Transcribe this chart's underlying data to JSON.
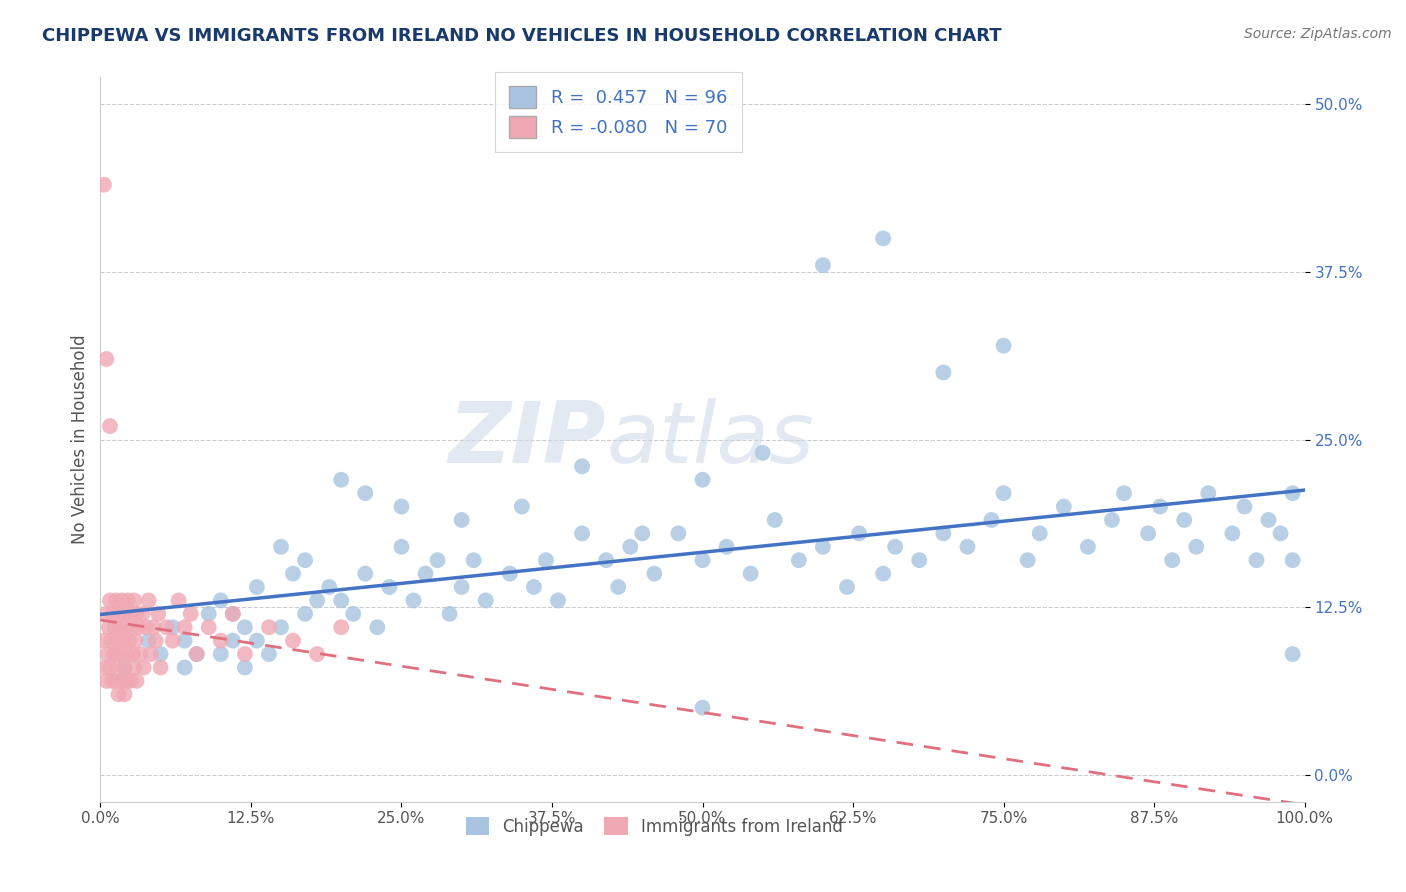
{
  "title": "CHIPPEWA VS IMMIGRANTS FROM IRELAND NO VEHICLES IN HOUSEHOLD CORRELATION CHART",
  "source_text": "Source: ZipAtlas.com",
  "ylabel": "No Vehicles in Household",
  "xlim": [
    0.0,
    1.0
  ],
  "ylim": [
    -0.02,
    0.52
  ],
  "xtick_labels": [
    "0.0%",
    "12.5%",
    "25.0%",
    "37.5%",
    "50.0%",
    "62.5%",
    "75.0%",
    "87.5%",
    "100.0%"
  ],
  "xtick_positions": [
    0.0,
    0.125,
    0.25,
    0.375,
    0.5,
    0.625,
    0.75,
    0.875,
    1.0
  ],
  "ytick_labels": [
    "0.0%",
    "12.5%",
    "25.0%",
    "37.5%",
    "50.0%"
  ],
  "ytick_positions": [
    0.0,
    0.125,
    0.25,
    0.375,
    0.5
  ],
  "legend_labels": [
    "Chippewa",
    "Immigrants from Ireland"
  ],
  "r_blue": 0.457,
  "n_blue": 96,
  "r_pink": -0.08,
  "n_pink": 70,
  "blue_color": "#a8c4e0",
  "pink_color": "#f0a8b4",
  "blue_line_color": "#4472c4",
  "pink_line_color": "#e07080",
  "watermark_zip": "ZIP",
  "watermark_atlas": "atlas",
  "background_color": "#ffffff",
  "grid_color": "#cccccc",
  "title_color": "#1a3a6b",
  "blue_scatter_x": [
    0.02,
    0.04,
    0.05,
    0.06,
    0.07,
    0.07,
    0.08,
    0.09,
    0.1,
    0.1,
    0.11,
    0.11,
    0.12,
    0.12,
    0.13,
    0.13,
    0.14,
    0.15,
    0.16,
    0.17,
    0.18,
    0.19,
    0.2,
    0.21,
    0.22,
    0.23,
    0.24,
    0.25,
    0.26,
    0.27,
    0.28,
    0.29,
    0.3,
    0.31,
    0.32,
    0.34,
    0.36,
    0.37,
    0.38,
    0.4,
    0.42,
    0.43,
    0.44,
    0.46,
    0.48,
    0.5,
    0.5,
    0.52,
    0.54,
    0.56,
    0.58,
    0.6,
    0.62,
    0.63,
    0.65,
    0.66,
    0.68,
    0.7,
    0.72,
    0.74,
    0.75,
    0.77,
    0.78,
    0.8,
    0.82,
    0.84,
    0.85,
    0.87,
    0.88,
    0.89,
    0.9,
    0.91,
    0.92,
    0.94,
    0.95,
    0.96,
    0.97,
    0.98,
    0.99,
    0.99,
    0.99,
    0.6,
    0.65,
    0.7,
    0.75,
    0.5,
    0.55,
    0.35,
    0.4,
    0.45,
    0.2,
    0.25,
    0.3,
    0.15,
    0.17,
    0.22
  ],
  "blue_scatter_y": [
    0.08,
    0.1,
    0.09,
    0.11,
    0.08,
    0.1,
    0.09,
    0.12,
    0.09,
    0.13,
    0.1,
    0.12,
    0.08,
    0.11,
    0.1,
    0.14,
    0.09,
    0.11,
    0.15,
    0.12,
    0.13,
    0.14,
    0.13,
    0.12,
    0.15,
    0.11,
    0.14,
    0.17,
    0.13,
    0.15,
    0.16,
    0.12,
    0.14,
    0.16,
    0.13,
    0.15,
    0.14,
    0.16,
    0.13,
    0.18,
    0.16,
    0.14,
    0.17,
    0.15,
    0.18,
    0.05,
    0.16,
    0.17,
    0.15,
    0.19,
    0.16,
    0.17,
    0.14,
    0.18,
    0.15,
    0.17,
    0.16,
    0.18,
    0.17,
    0.19,
    0.21,
    0.16,
    0.18,
    0.2,
    0.17,
    0.19,
    0.21,
    0.18,
    0.2,
    0.16,
    0.19,
    0.17,
    0.21,
    0.18,
    0.2,
    0.16,
    0.19,
    0.18,
    0.21,
    0.16,
    0.09,
    0.38,
    0.4,
    0.3,
    0.32,
    0.22,
    0.24,
    0.2,
    0.23,
    0.18,
    0.22,
    0.2,
    0.19,
    0.17,
    0.16,
    0.21
  ],
  "pink_scatter_x": [
    0.003,
    0.004,
    0.005,
    0.005,
    0.006,
    0.007,
    0.008,
    0.008,
    0.009,
    0.01,
    0.01,
    0.011,
    0.012,
    0.012,
    0.013,
    0.013,
    0.014,
    0.015,
    0.015,
    0.015,
    0.016,
    0.017,
    0.018,
    0.018,
    0.019,
    0.02,
    0.02,
    0.02,
    0.021,
    0.022,
    0.022,
    0.023,
    0.024,
    0.025,
    0.025,
    0.026,
    0.027,
    0.028,
    0.028,
    0.029,
    0.03,
    0.03,
    0.032,
    0.033,
    0.035,
    0.036,
    0.038,
    0.04,
    0.042,
    0.044,
    0.046,
    0.048,
    0.05,
    0.055,
    0.06,
    0.065,
    0.07,
    0.075,
    0.08,
    0.09,
    0.1,
    0.11,
    0.12,
    0.14,
    0.16,
    0.18,
    0.2,
    0.003,
    0.005,
    0.008
  ],
  "pink_scatter_y": [
    0.1,
    0.08,
    0.12,
    0.07,
    0.09,
    0.11,
    0.08,
    0.13,
    0.1,
    0.07,
    0.12,
    0.09,
    0.11,
    0.07,
    0.13,
    0.09,
    0.1,
    0.12,
    0.08,
    0.06,
    0.11,
    0.09,
    0.13,
    0.07,
    0.1,
    0.12,
    0.08,
    0.06,
    0.11,
    0.09,
    0.07,
    0.13,
    0.1,
    0.12,
    0.07,
    0.11,
    0.09,
    0.13,
    0.08,
    0.1,
    0.12,
    0.07,
    0.11,
    0.09,
    0.12,
    0.08,
    0.11,
    0.13,
    0.09,
    0.11,
    0.1,
    0.12,
    0.08,
    0.11,
    0.1,
    0.13,
    0.11,
    0.12,
    0.09,
    0.11,
    0.1,
    0.12,
    0.09,
    0.11,
    0.1,
    0.09,
    0.11,
    0.44,
    0.31,
    0.26
  ]
}
